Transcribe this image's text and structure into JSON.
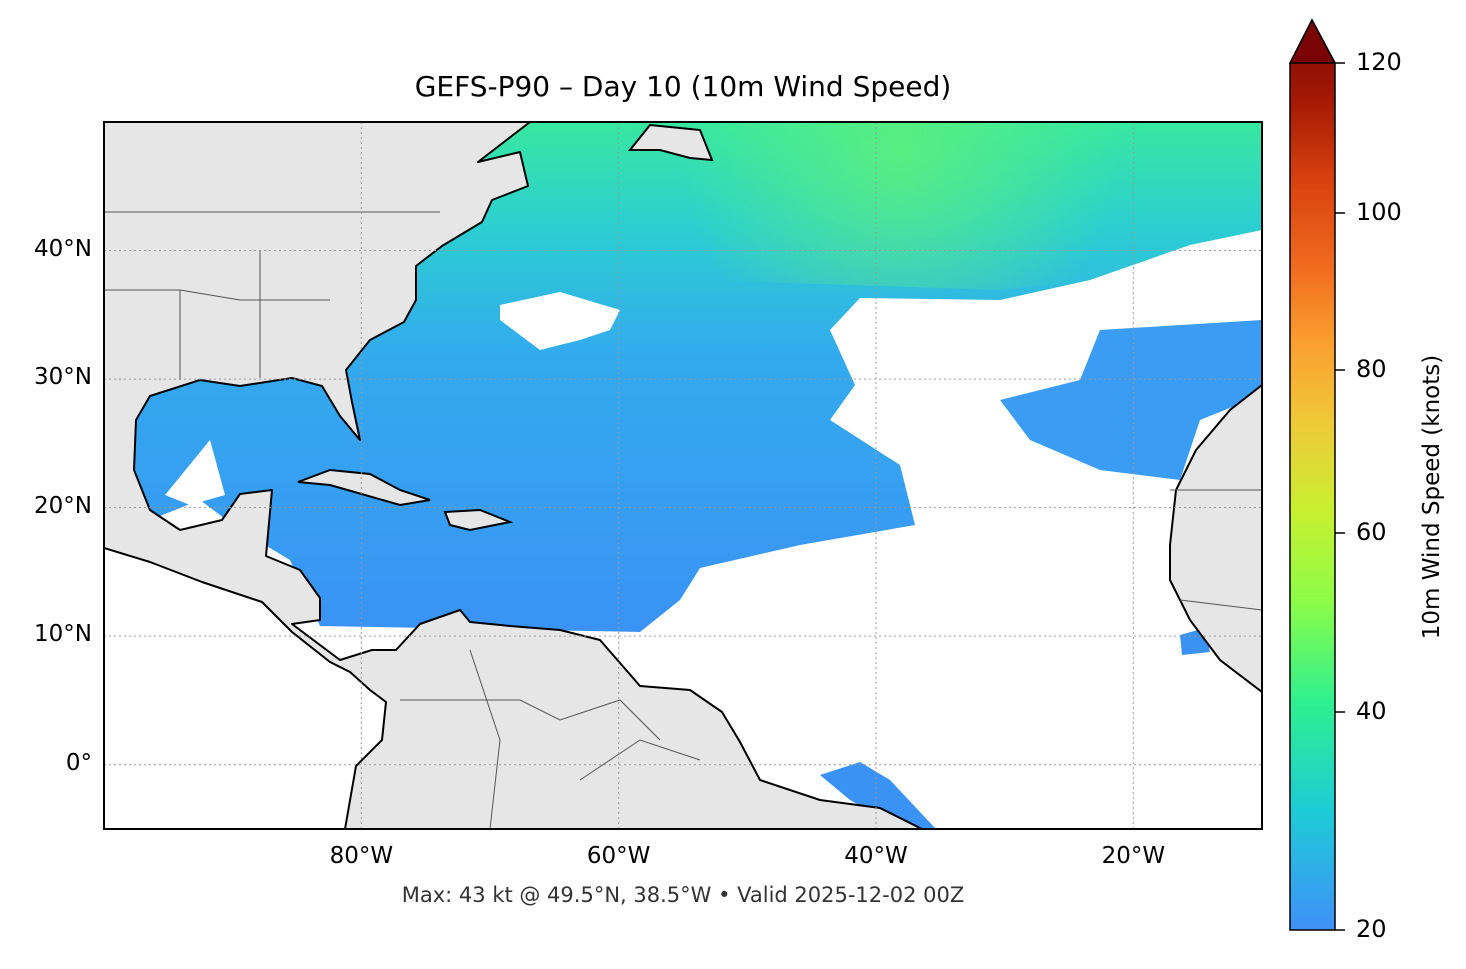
{
  "title": "GEFS-P90 – Day 10 (10m Wind Speed)",
  "footer": "Max: 43 kt @ 49.5°N, 38.5°W • Valid 2025-12-02 00Z",
  "map": {
    "projection": "plate-carree",
    "extent": {
      "lon_min": -100,
      "lon_max": -10,
      "lat_min": -5,
      "lat_max": 50
    },
    "land_color": "#e6e6e6",
    "no_data_color": "#ffffff",
    "gridlines": true,
    "lon_ticks": [
      {
        "value": -80,
        "label": "80°W"
      },
      {
        "value": -60,
        "label": "60°W"
      },
      {
        "value": -40,
        "label": "40°W"
      },
      {
        "value": -20,
        "label": "20°W"
      }
    ],
    "lat_ticks": [
      {
        "value": 40,
        "label": "40°N"
      },
      {
        "value": 30,
        "label": "30°N"
      },
      {
        "value": 20,
        "label": "20°N"
      },
      {
        "value": 10,
        "label": "10°N"
      },
      {
        "value": 0,
        "label": "0°"
      }
    ],
    "max_value_kt": 43,
    "max_location": {
      "lat": 49.5,
      "lon": -38.5
    }
  },
  "colorbar": {
    "label": "10m Wind Speed (knots)",
    "colormap": "turbo",
    "range": [
      20,
      120
    ],
    "extend": "max",
    "ticks": [
      {
        "value": 20,
        "label": "20"
      },
      {
        "value": 40,
        "label": "40"
      },
      {
        "value": 60,
        "label": "60"
      },
      {
        "value": 80,
        "label": "80"
      },
      {
        "value": 100,
        "label": "100"
      },
      {
        "value": 120,
        "label": "120"
      }
    ]
  }
}
